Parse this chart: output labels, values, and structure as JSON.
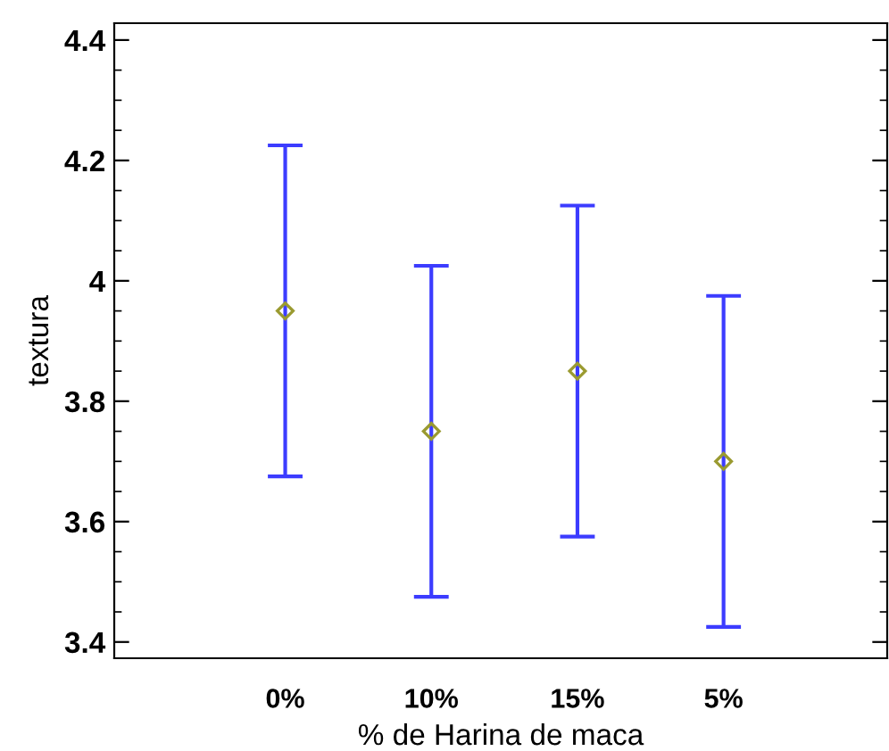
{
  "chart_data": {
    "type": "scatter",
    "xlabel": "% de Harina de maca",
    "ylabel": "textura",
    "categories": [
      "0%",
      "10%",
      "15%",
      "5%"
    ],
    "series": [
      {
        "color": "#9a9a30",
        "values": [
          3.95,
          3.75,
          3.85,
          3.7
        ],
        "errors": [
          0.275,
          0.275,
          0.275,
          0.275
        ]
      }
    ],
    "marker": "diamond",
    "ylim": [
      3.373,
      4.428
    ],
    "yticks": [
      3.4,
      3.6,
      3.8,
      4,
      4.2,
      4.4
    ],
    "grid": false,
    "legend": false
  }
}
